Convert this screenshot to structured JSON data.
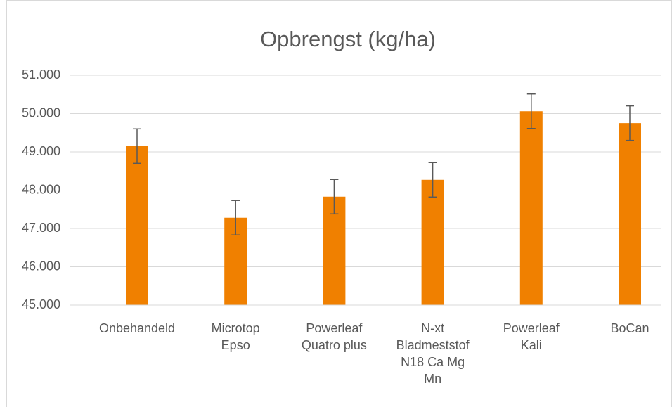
{
  "chart_data": {
    "type": "bar",
    "title": "Opbrengst (kg/ha)",
    "categories": [
      "Onbehandeld",
      "Microtop Epso",
      "Powerleaf Quatro plus",
      "N-xt Bladmeststof N18 Ca Mg Mn",
      "Powerleaf Kali",
      "BoCan"
    ],
    "values": [
      49150,
      47280,
      47830,
      48270,
      50060,
      49750
    ],
    "errors": [
      450,
      450,
      450,
      450,
      450,
      450
    ],
    "color": "#f08000",
    "ylim": [
      45000,
      51000
    ],
    "yticks": [
      {
        "value": 45000,
        "label": "45.000"
      },
      {
        "value": 46000,
        "label": "46.000"
      },
      {
        "value": 47000,
        "label": "47.000"
      },
      {
        "value": 48000,
        "label": "48.000"
      },
      {
        "value": 49000,
        "label": "49.000"
      },
      {
        "value": 50000,
        "label": "50.000"
      },
      {
        "value": 51000,
        "label": "51.000"
      }
    ],
    "grid": true
  }
}
